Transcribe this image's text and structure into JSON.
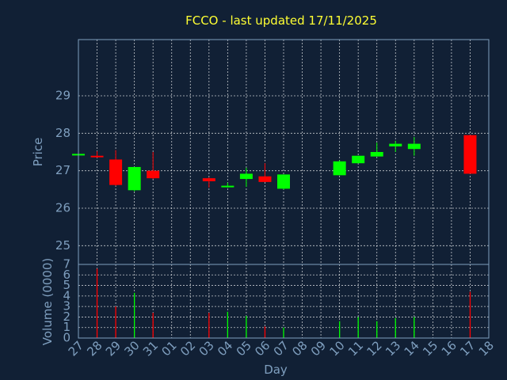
{
  "chart_data": {
    "type": "candlestick",
    "title": "FCCO - last updated 17/11/2025",
    "price_panel": {
      "ylabel": "Price",
      "ylim": [
        24.5,
        30.5
      ],
      "yticks": [
        25,
        26,
        27,
        28,
        29
      ]
    },
    "volume_panel": {
      "ylabel": "Volume (0000)",
      "ylim": [
        0,
        7
      ],
      "yticks": [
        0,
        1,
        2,
        3,
        4,
        5,
        6,
        7
      ]
    },
    "xlabel": "Day",
    "x_ticks": [
      "27",
      "28",
      "29",
      "30",
      "31",
      "01",
      "02",
      "03",
      "04",
      "05",
      "06",
      "07",
      "08",
      "09",
      "10",
      "11",
      "12",
      "13",
      "14",
      "15",
      "16",
      "17",
      "18"
    ],
    "candles": [
      {
        "day": "27",
        "open": 27.45,
        "high": 27.45,
        "low": 27.45,
        "close": 27.45,
        "volume": 0
      },
      {
        "day": "28",
        "open": 27.4,
        "high": 27.52,
        "low": 27.35,
        "close": 27.38,
        "volume": 6.6
      },
      {
        "day": "29",
        "open": 27.3,
        "high": 27.55,
        "low": 26.6,
        "close": 26.62,
        "volume": 3.0
      },
      {
        "day": "30",
        "open": 26.48,
        "high": 27.1,
        "low": 26.45,
        "close": 27.1,
        "volume": 4.3
      },
      {
        "day": "31",
        "open": 27.0,
        "high": 27.5,
        "low": 26.78,
        "close": 26.8,
        "volume": 2.4
      },
      {
        "day": "03",
        "open": 26.8,
        "high": 26.82,
        "low": 26.55,
        "close": 26.72,
        "volume": 2.4
      },
      {
        "day": "04",
        "open": 26.57,
        "high": 26.68,
        "low": 26.55,
        "close": 26.6,
        "volume": 2.5
      },
      {
        "day": "05",
        "open": 26.78,
        "high": 27.08,
        "low": 26.57,
        "close": 26.92,
        "volume": 2.1
      },
      {
        "day": "06",
        "open": 26.85,
        "high": 27.2,
        "low": 26.7,
        "close": 26.7,
        "volume": 1.1
      },
      {
        "day": "07",
        "open": 26.52,
        "high": 26.9,
        "low": 26.5,
        "close": 26.9,
        "volume": 1.0
      },
      {
        "day": "10",
        "open": 26.88,
        "high": 27.28,
        "low": 26.88,
        "close": 27.25,
        "volume": 1.6
      },
      {
        "day": "11",
        "open": 27.2,
        "high": 27.4,
        "low": 27.2,
        "close": 27.4,
        "volume": 2.0
      },
      {
        "day": "12",
        "open": 27.38,
        "high": 27.75,
        "low": 27.38,
        "close": 27.5,
        "volume": 1.6
      },
      {
        "day": "13",
        "open": 27.65,
        "high": 27.8,
        "low": 27.5,
        "close": 27.72,
        "volume": 1.9
      },
      {
        "day": "14",
        "open": 27.58,
        "high": 27.9,
        "low": 27.4,
        "close": 27.72,
        "volume": 2.0
      },
      {
        "day": "17",
        "open": 27.95,
        "high": 27.95,
        "low": 26.92,
        "close": 26.92,
        "volume": 4.4
      }
    ],
    "colors": {
      "up": "#00ff00",
      "down": "#ff0000",
      "title": "#ffff33",
      "axis": "#7f9fbf",
      "background": "#112035"
    }
  }
}
